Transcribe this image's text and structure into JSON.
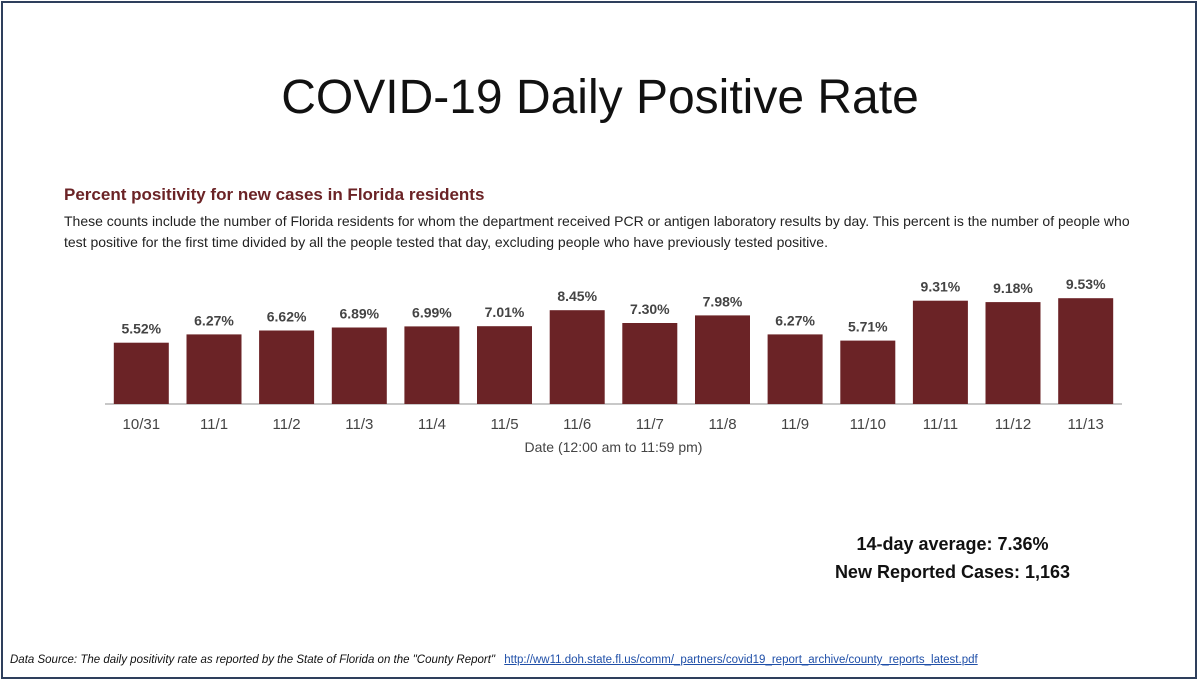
{
  "slide": {
    "title": "COVID-19 Daily Positive Rate"
  },
  "chart_data": {
    "type": "bar",
    "title": "Percent positivity for new cases in Florida residents",
    "description": "These counts include the number of Florida residents for whom the department received PCR or antigen laboratory results by day. This percent is the number of people who test positive for the first time divided by all the people tested that day, excluding people who have previously tested positive.",
    "xlabel": "Date (12:00 am to 11:59 pm)",
    "ylabel": "",
    "categories": [
      "10/31",
      "11/1",
      "11/2",
      "11/3",
      "11/4",
      "11/5",
      "11/6",
      "11/7",
      "11/8",
      "11/9",
      "11/10",
      "11/11",
      "11/12",
      "11/13"
    ],
    "values": [
      5.52,
      6.27,
      6.62,
      6.89,
      6.99,
      7.01,
      8.45,
      7.3,
      7.98,
      6.27,
      5.71,
      9.31,
      9.18,
      9.53
    ],
    "value_labels": [
      "5.52%",
      "6.27%",
      "6.62%",
      "6.89%",
      "6.99%",
      "7.01%",
      "8.45%",
      "7.30%",
      "7.98%",
      "6.27%",
      "5.71%",
      "9.31%",
      "9.18%",
      "9.53%"
    ],
    "grid": false,
    "bar_color": "#6b2326"
  },
  "stats": {
    "average": "14-day average: 7.36%",
    "new_cases": "New Reported Cases: 1,163"
  },
  "footer": {
    "source_text": "Data Source: The daily positivity rate as reported by the State of Florida on the \"County Report\"",
    "link_text": "http://ww11.doh.state.fl.us/comm/_partners/covid19_report_archive/county_reports_latest.pdf"
  }
}
